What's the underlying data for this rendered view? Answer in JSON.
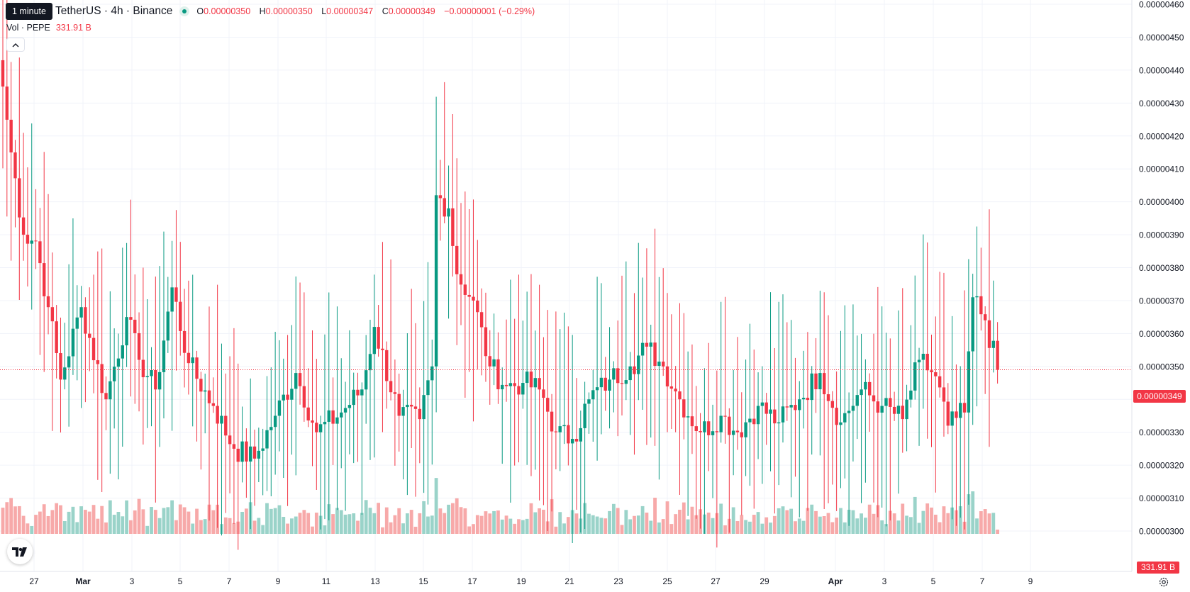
{
  "header": {
    "interval_tooltip": "1 minute",
    "symbol": "TetherUS · 4h · Binance",
    "ohlc": {
      "o_label": "O",
      "o_value": "0.00000350",
      "h_label": "H",
      "h_value": "0.00000350",
      "l_label": "L",
      "l_value": "0.00000347",
      "c_label": "C",
      "c_value": "0.00000349",
      "change": "−0.00000001 (−0.29%)"
    }
  },
  "volume_legend": {
    "label": "Vol · PEPE",
    "value": "331.91 B"
  },
  "price_axis": {
    "labels": [
      "0.00000460",
      "0.00000450",
      "0.00000440",
      "0.00000430",
      "0.00000420",
      "0.00000410",
      "0.00000400",
      "0.00000390",
      "0.00000380",
      "0.00000370",
      "0.00000360",
      "0.00000350",
      "0.00000340",
      "0.00000330",
      "0.00000320",
      "0.00000310",
      "0.00000300"
    ],
    "current_price": "0.00000349",
    "current_volume": "331.91 B"
  },
  "time_axis": {
    "labels": [
      "27",
      "Mar",
      "3",
      "5",
      "7",
      "9",
      "11",
      "13",
      "15",
      "17",
      "19",
      "21",
      "23",
      "25",
      "27",
      "29",
      "Apr",
      "3",
      "5",
      "7",
      "9"
    ]
  },
  "colors": {
    "up": "#089981",
    "down": "#f23645",
    "up_volume": "#9ad3c9",
    "down_volume": "#f7a9a9",
    "grid": "#f0f3fa"
  },
  "chart_data": {
    "type": "candlestick",
    "interval": "4h",
    "y_range": [
      3e-06,
      4.6e-06
    ],
    "price_line": 3.49e-06,
    "anchors": [
      {
        "t": 0,
        "p": 4.35e-06
      },
      {
        "t": 2,
        "p": 4.15e-06
      },
      {
        "t": 5,
        "p": 3.9e-06
      },
      {
        "t": 8,
        "p": 3.88e-06
      },
      {
        "t": 11,
        "p": 3.68e-06
      },
      {
        "t": 14,
        "p": 3.46e-06
      },
      {
        "t": 19,
        "p": 3.68e-06
      },
      {
        "t": 25,
        "p": 3.4e-06
      },
      {
        "t": 30,
        "p": 3.65e-06
      },
      {
        "t": 33,
        "p": 3.52e-06
      },
      {
        "t": 37,
        "p": 3.43e-06
      },
      {
        "t": 41,
        "p": 3.74e-06
      },
      {
        "t": 45,
        "p": 3.51e-06
      },
      {
        "t": 51,
        "p": 3.38e-06
      },
      {
        "t": 56,
        "p": 3.25e-06
      },
      {
        "t": 61,
        "p": 3.22e-06
      },
      {
        "t": 66,
        "p": 3.35e-06
      },
      {
        "t": 71,
        "p": 3.48e-06
      },
      {
        "t": 76,
        "p": 3.3e-06
      },
      {
        "t": 82,
        "p": 3.36e-06
      },
      {
        "t": 87,
        "p": 3.43e-06
      },
      {
        "t": 90,
        "p": 3.62e-06
      },
      {
        "t": 96,
        "p": 3.35e-06
      },
      {
        "t": 101,
        "p": 3.34e-06
      },
      {
        "t": 104,
        "p": 3.5e-06
      },
      {
        "t": 105,
        "p": 4.02e-06
      },
      {
        "t": 108,
        "p": 3.98e-06
      },
      {
        "t": 110,
        "p": 3.78e-06
      },
      {
        "t": 114,
        "p": 3.7e-06
      },
      {
        "t": 118,
        "p": 3.5e-06
      },
      {
        "t": 122,
        "p": 3.44e-06
      },
      {
        "t": 126,
        "p": 3.45e-06
      },
      {
        "t": 130,
        "p": 3.43e-06
      },
      {
        "t": 134,
        "p": 3.3e-06
      },
      {
        "t": 138,
        "p": 3.28e-06
      },
      {
        "t": 142,
        "p": 3.4e-06
      },
      {
        "t": 147,
        "p": 3.46e-06
      },
      {
        "t": 152,
        "p": 3.5e-06
      },
      {
        "t": 156,
        "p": 3.56e-06
      },
      {
        "t": 160,
        "p": 3.5e-06
      },
      {
        "t": 164,
        "p": 3.4e-06
      },
      {
        "t": 169,
        "p": 3.3e-06
      },
      {
        "t": 174,
        "p": 3.35e-06
      },
      {
        "t": 178,
        "p": 3.3e-06
      },
      {
        "t": 183,
        "p": 3.38e-06
      },
      {
        "t": 188,
        "p": 3.33e-06
      },
      {
        "t": 193,
        "p": 3.4e-06
      },
      {
        "t": 198,
        "p": 3.48e-06
      },
      {
        "t": 203,
        "p": 3.33e-06
      },
      {
        "t": 208,
        "p": 3.43e-06
      },
      {
        "t": 213,
        "p": 3.38e-06
      },
      {
        "t": 218,
        "p": 3.34e-06
      },
      {
        "t": 222,
        "p": 3.52e-06
      },
      {
        "t": 226,
        "p": 3.47e-06
      },
      {
        "t": 229,
        "p": 3.32e-06
      },
      {
        "t": 233,
        "p": 3.36e-06
      },
      {
        "t": 235,
        "p": 3.71e-06
      },
      {
        "t": 238,
        "p": 3.64e-06
      },
      {
        "t": 241,
        "p": 3.49e-06
      }
    ],
    "volume_note": "Volume histogram, last bar 331.91 B"
  }
}
